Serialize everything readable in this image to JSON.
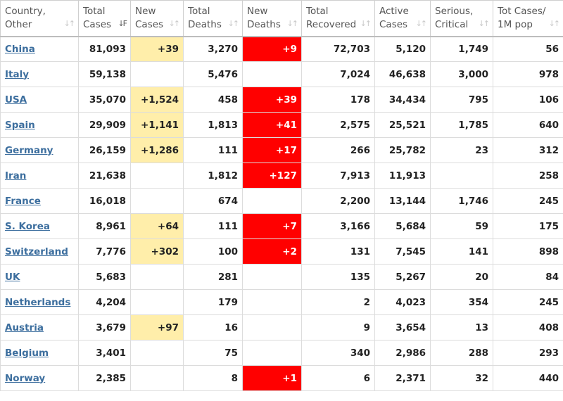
{
  "colors": {
    "new_cases_bg": "#ffeeaa",
    "new_deaths_bg": "#ff0000",
    "link": "#3c6e9e"
  },
  "headers": [
    {
      "line1": "Country,",
      "line2": "Other",
      "sort_icon": "sort-arrows-icon"
    },
    {
      "line1": "Total",
      "line2": "Cases",
      "sort_icon": "sort-descending-icon"
    },
    {
      "line1": "New",
      "line2": "Cases",
      "sort_icon": "sort-arrows-icon"
    },
    {
      "line1": "Total",
      "line2": "Deaths",
      "sort_icon": "sort-arrows-icon"
    },
    {
      "line1": "New",
      "line2": "Deaths",
      "sort_icon": "sort-arrows-icon"
    },
    {
      "line1": "Total",
      "line2": "Recovered",
      "sort_icon": "sort-arrows-icon"
    },
    {
      "line1": "Active",
      "line2": "Cases",
      "sort_icon": "sort-arrows-icon"
    },
    {
      "line1": "Serious,",
      "line2": "Critical",
      "sort_icon": "sort-arrows-icon"
    },
    {
      "line1": "Tot Cases/",
      "line2": "1M pop",
      "sort_icon": "sort-arrows-icon"
    }
  ],
  "rows": [
    {
      "country": "China",
      "total_cases": "81,093",
      "new_cases": "+39",
      "total_deaths": "3,270",
      "new_deaths": "+9",
      "total_recovered": "72,703",
      "active_cases": "5,120",
      "serious_critical": "1,749",
      "tot_cases_1m": "56"
    },
    {
      "country": "Italy",
      "total_cases": "59,138",
      "new_cases": "",
      "total_deaths": "5,476",
      "new_deaths": "",
      "total_recovered": "7,024",
      "active_cases": "46,638",
      "serious_critical": "3,000",
      "tot_cases_1m": "978"
    },
    {
      "country": "USA",
      "total_cases": "35,070",
      "new_cases": "+1,524",
      "total_deaths": "458",
      "new_deaths": "+39",
      "total_recovered": "178",
      "active_cases": "34,434",
      "serious_critical": "795",
      "tot_cases_1m": "106"
    },
    {
      "country": "Spain",
      "total_cases": "29,909",
      "new_cases": "+1,141",
      "total_deaths": "1,813",
      "new_deaths": "+41",
      "total_recovered": "2,575",
      "active_cases": "25,521",
      "serious_critical": "1,785",
      "tot_cases_1m": "640"
    },
    {
      "country": "Germany",
      "total_cases": "26,159",
      "new_cases": "+1,286",
      "total_deaths": "111",
      "new_deaths": "+17",
      "total_recovered": "266",
      "active_cases": "25,782",
      "serious_critical": "23",
      "tot_cases_1m": "312"
    },
    {
      "country": "Iran",
      "total_cases": "21,638",
      "new_cases": "",
      "total_deaths": "1,812",
      "new_deaths": "+127",
      "total_recovered": "7,913",
      "active_cases": "11,913",
      "serious_critical": "",
      "tot_cases_1m": "258"
    },
    {
      "country": "France",
      "total_cases": "16,018",
      "new_cases": "",
      "total_deaths": "674",
      "new_deaths": "",
      "total_recovered": "2,200",
      "active_cases": "13,144",
      "serious_critical": "1,746",
      "tot_cases_1m": "245"
    },
    {
      "country": "S. Korea",
      "total_cases": "8,961",
      "new_cases": "+64",
      "total_deaths": "111",
      "new_deaths": "+7",
      "total_recovered": "3,166",
      "active_cases": "5,684",
      "serious_critical": "59",
      "tot_cases_1m": "175"
    },
    {
      "country": "Switzerland",
      "total_cases": "7,776",
      "new_cases": "+302",
      "total_deaths": "100",
      "new_deaths": "+2",
      "total_recovered": "131",
      "active_cases": "7,545",
      "serious_critical": "141",
      "tot_cases_1m": "898"
    },
    {
      "country": "UK",
      "total_cases": "5,683",
      "new_cases": "",
      "total_deaths": "281",
      "new_deaths": "",
      "total_recovered": "135",
      "active_cases": "5,267",
      "serious_critical": "20",
      "tot_cases_1m": "84"
    },
    {
      "country": "Netherlands",
      "total_cases": "4,204",
      "new_cases": "",
      "total_deaths": "179",
      "new_deaths": "",
      "total_recovered": "2",
      "active_cases": "4,023",
      "serious_critical": "354",
      "tot_cases_1m": "245"
    },
    {
      "country": "Austria",
      "total_cases": "3,679",
      "new_cases": "+97",
      "total_deaths": "16",
      "new_deaths": "",
      "total_recovered": "9",
      "active_cases": "3,654",
      "serious_critical": "13",
      "tot_cases_1m": "408"
    },
    {
      "country": "Belgium",
      "total_cases": "3,401",
      "new_cases": "",
      "total_deaths": "75",
      "new_deaths": "",
      "total_recovered": "340",
      "active_cases": "2,986",
      "serious_critical": "288",
      "tot_cases_1m": "293"
    },
    {
      "country": "Norway",
      "total_cases": "2,385",
      "new_cases": "",
      "total_deaths": "8",
      "new_deaths": "+1",
      "total_recovered": "6",
      "active_cases": "2,371",
      "serious_critical": "32",
      "tot_cases_1m": "440"
    }
  ]
}
